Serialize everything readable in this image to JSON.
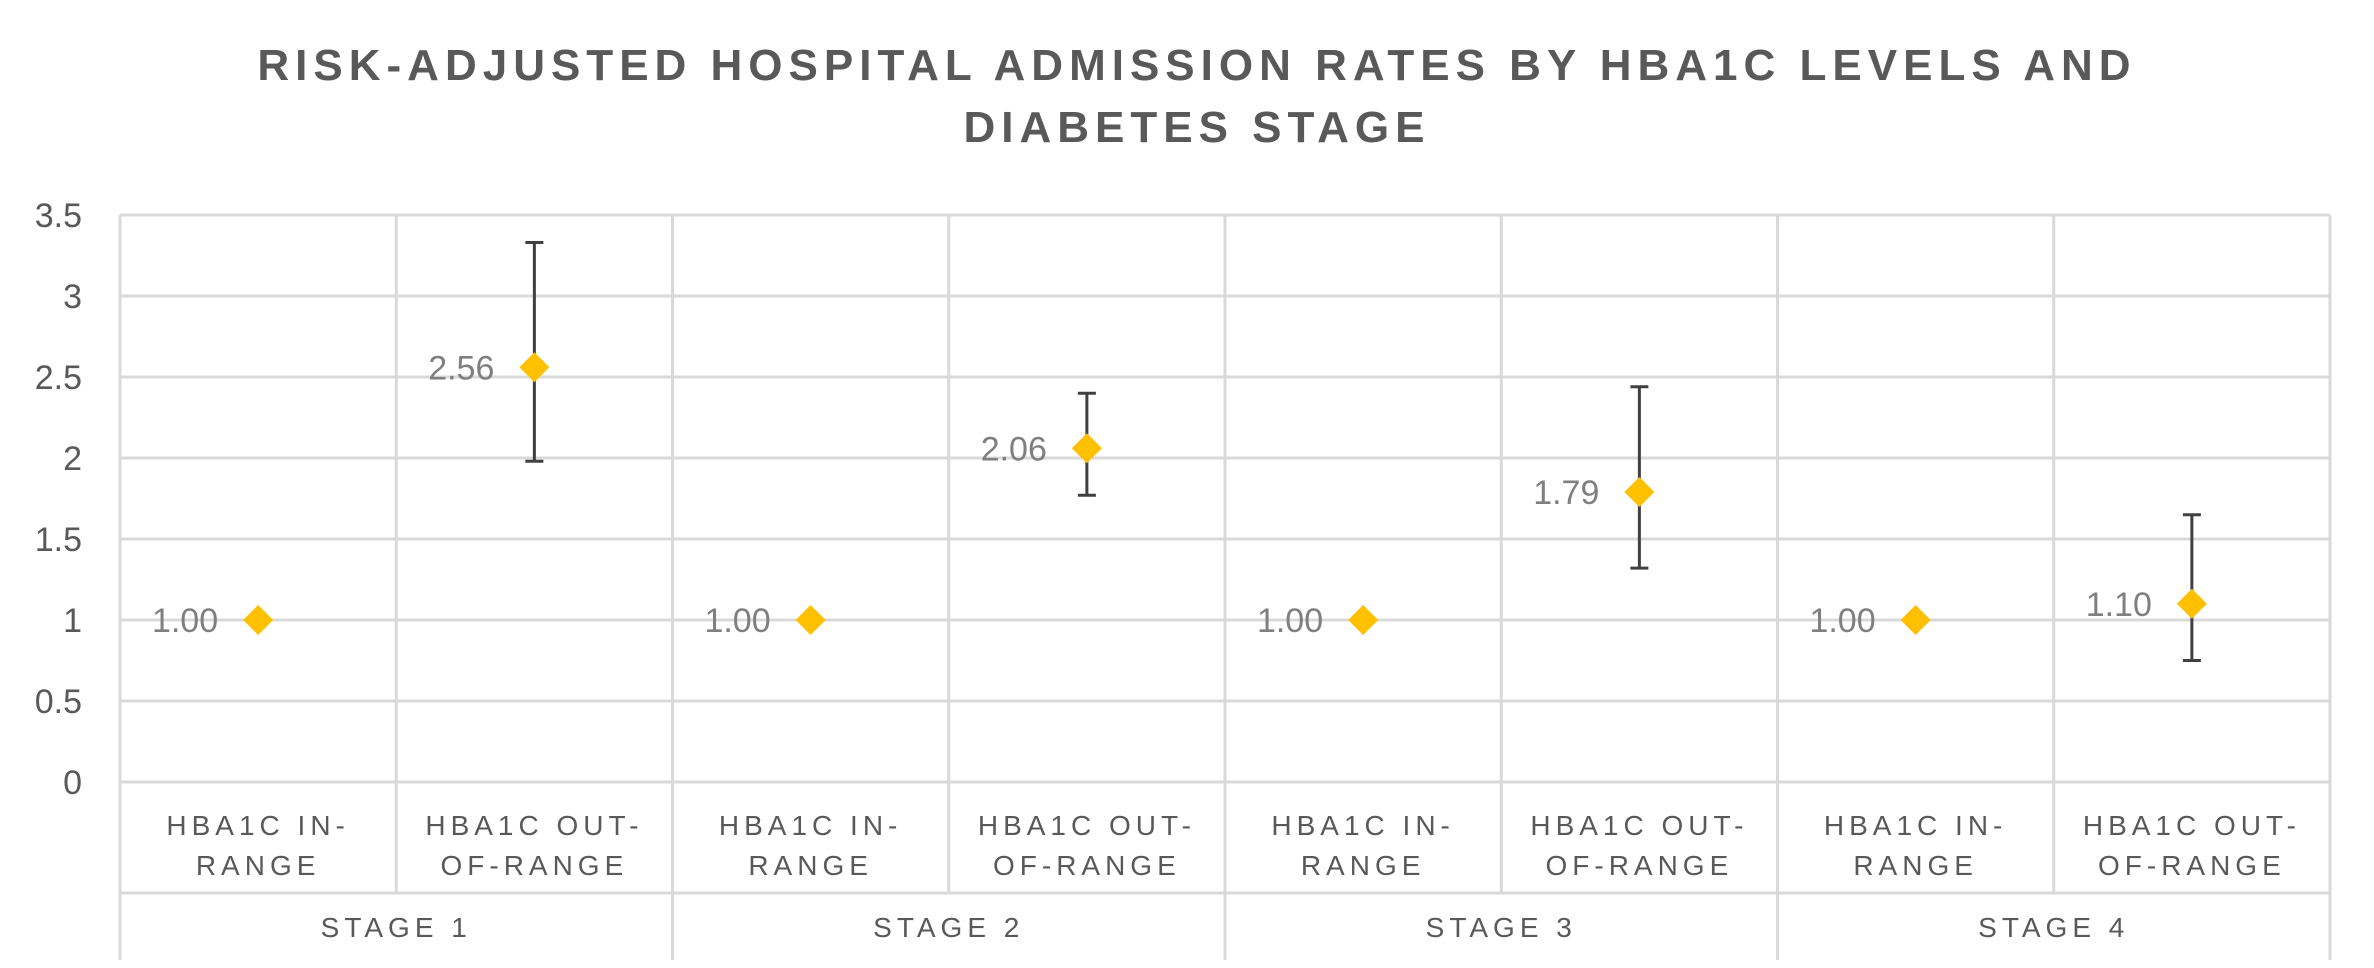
{
  "chart_data": {
    "type": "scatter",
    "title_lines": [
      "RISK-ADJUSTED HOSPITAL ADMISSION RATES BY HBA1C LEVELS AND",
      "DIABETES STAGE"
    ],
    "xlabel": "",
    "ylabel": "",
    "ylim": [
      0,
      3.5
    ],
    "y_ticks": [
      "0",
      "0.5",
      "1",
      "1.5",
      "2",
      "2.5",
      "3",
      "3.5"
    ],
    "grid": true,
    "legend": "none",
    "marker": "diamond",
    "marker_color": "#FFC000",
    "error_bar_color": "#404040",
    "groups": [
      {
        "name": "STAGE 1",
        "points": [
          {
            "category_lines": [
              "HBA1C IN-",
              "RANGE"
            ],
            "value": 1.0,
            "label": "1.00",
            "err_low": null,
            "err_high": null
          },
          {
            "category_lines": [
              "HBA1C OUT-",
              "OF-RANGE"
            ],
            "value": 2.56,
            "label": "2.56",
            "err_low": 1.98,
            "err_high": 3.33
          }
        ]
      },
      {
        "name": "STAGE 2",
        "points": [
          {
            "category_lines": [
              "HBA1C IN-",
              "RANGE"
            ],
            "value": 1.0,
            "label": "1.00",
            "err_low": null,
            "err_high": null
          },
          {
            "category_lines": [
              "HBA1C OUT-",
              "OF-RANGE"
            ],
            "value": 2.06,
            "label": "2.06",
            "err_low": 1.77,
            "err_high": 2.4
          }
        ]
      },
      {
        "name": "STAGE 3",
        "points": [
          {
            "category_lines": [
              "HBA1C IN-",
              "RANGE"
            ],
            "value": 1.0,
            "label": "1.00",
            "err_low": null,
            "err_high": null
          },
          {
            "category_lines": [
              "HBA1C OUT-",
              "OF-RANGE"
            ],
            "value": 1.79,
            "label": "1.79",
            "err_low": 1.32,
            "err_high": 2.44
          }
        ]
      },
      {
        "name": "STAGE 4",
        "points": [
          {
            "category_lines": [
              "HBA1C IN-",
              "RANGE"
            ],
            "value": 1.0,
            "label": "1.00",
            "err_low": null,
            "err_high": null
          },
          {
            "category_lines": [
              "HBA1C OUT-",
              "OF-RANGE"
            ],
            "value": 1.1,
            "label": "1.10",
            "err_low": 0.75,
            "err_high": 1.65
          }
        ]
      }
    ]
  }
}
